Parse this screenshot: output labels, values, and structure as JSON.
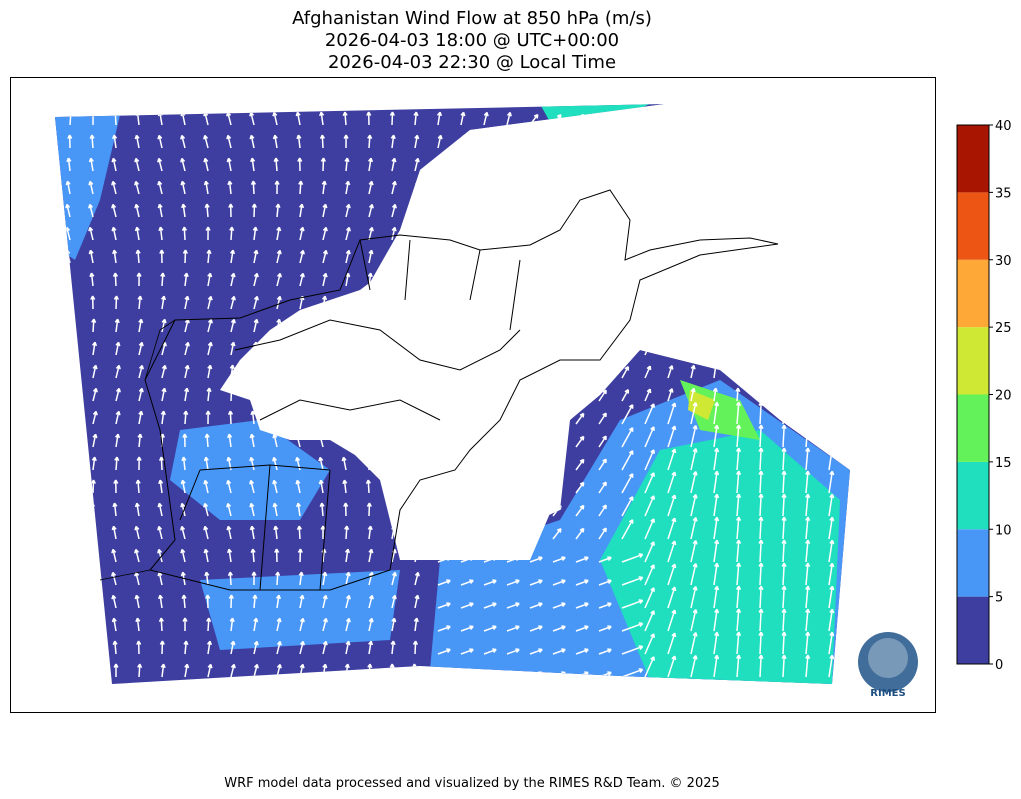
{
  "title": [
    "Afghanistan Wind Flow at 850 hPa (m/s)",
    "2026-04-03 18:00 @ UTC+00:00",
    "2026-04-03 22:30 @ Local Time"
  ],
  "colorbar": {
    "ticks": [
      0,
      5,
      10,
      15,
      20,
      25,
      30,
      35,
      40
    ],
    "colors": [
      "#3e3ea0",
      "#4897f7",
      "#1fdfbf",
      "#64f25a",
      "#cfe833",
      "#fea937",
      "#ec5514",
      "#a81500"
    ]
  },
  "logo": "RIMES",
  "footer": "WRF model data processed and visualized by the RIMES R&D Team. © 2025"
}
